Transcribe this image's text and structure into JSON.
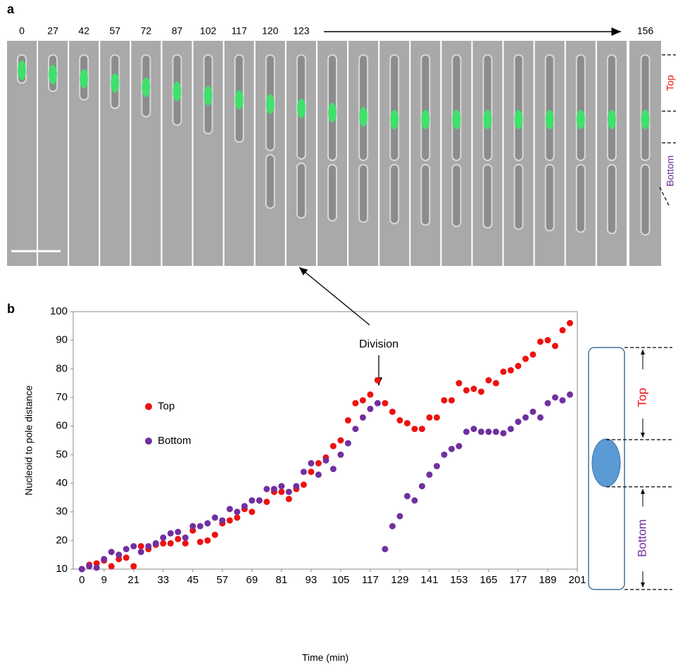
{
  "panels": [
    "a",
    "b"
  ],
  "timelapse": {
    "times": [
      "0",
      "27",
      "42",
      "57",
      "72",
      "87",
      "102",
      "117",
      "120",
      "123",
      "156"
    ],
    "side_labels": [
      "Top",
      "Bottom"
    ]
  },
  "chart_data": {
    "type": "scatter",
    "x_label": "Time (min)",
    "y_label": "Nucleoid to pole distance",
    "annotation": "Division",
    "x": [
      0,
      3,
      6,
      9,
      12,
      15,
      18,
      21,
      24,
      27,
      30,
      33,
      36,
      39,
      42,
      45,
      48,
      51,
      54,
      57,
      60,
      63,
      66,
      69,
      72,
      75,
      78,
      81,
      84,
      87,
      90,
      93,
      96,
      99,
      102,
      105,
      108,
      111,
      114,
      117,
      120,
      123,
      126,
      129,
      132,
      135,
      138,
      141,
      144,
      147,
      150,
      153,
      156,
      159,
      162,
      165,
      168,
      171,
      174,
      177,
      180,
      183,
      186,
      189,
      192,
      195,
      198
    ],
    "series": [
      {
        "name": "Top",
        "color": "#ee1111",
        "values": [
          10,
          11.5,
          12,
          13,
          11,
          13.5,
          14,
          11,
          18,
          17,
          18.5,
          19,
          19,
          20.5,
          19,
          23.5,
          19.5,
          20,
          22,
          26,
          27,
          28,
          31,
          30,
          34,
          33.5,
          37,
          37,
          34.5,
          38,
          39.5,
          44,
          47,
          49,
          53,
          55,
          62,
          68,
          69,
          71,
          76,
          68,
          65,
          62,
          61,
          59,
          59,
          63,
          63,
          69,
          69,
          75,
          72.5,
          73,
          72,
          76,
          75,
          79,
          79.5,
          81,
          83.5,
          85,
          89.5,
          90,
          88,
          93.5,
          96
        ]
      },
      {
        "name": "Bottom",
        "color": "#7030a0",
        "values": [
          10,
          11,
          10.5,
          13.5,
          16,
          15,
          17,
          18,
          16,
          18,
          19,
          21,
          22.5,
          23,
          21,
          25,
          25,
          26,
          28,
          27,
          31,
          30,
          32,
          34,
          34,
          38,
          38,
          39,
          37,
          39,
          44,
          47,
          43,
          48,
          45,
          50,
          54,
          59,
          63,
          66,
          68,
          17,
          25,
          28.5,
          35.5,
          34,
          39,
          43,
          46,
          50,
          52,
          53,
          58,
          59,
          58,
          58,
          58,
          57.5,
          59,
          61.5,
          63,
          65,
          63,
          68,
          70,
          69,
          71
        ]
      }
    ],
    "xlim": [
      -3.5,
      201
    ],
    "xticks": [
      0,
      9,
      21,
      33,
      45,
      57,
      69,
      81,
      93,
      105,
      117,
      129,
      141,
      153,
      165,
      177,
      189,
      201
    ],
    "ylim": [
      10,
      100
    ],
    "yticks": [
      10,
      20,
      30,
      40,
      50,
      60,
      70,
      80,
      90,
      100
    ],
    "grid": false
  },
  "diagram": {
    "top_label": "Top",
    "bottom_label": "Bottom"
  }
}
